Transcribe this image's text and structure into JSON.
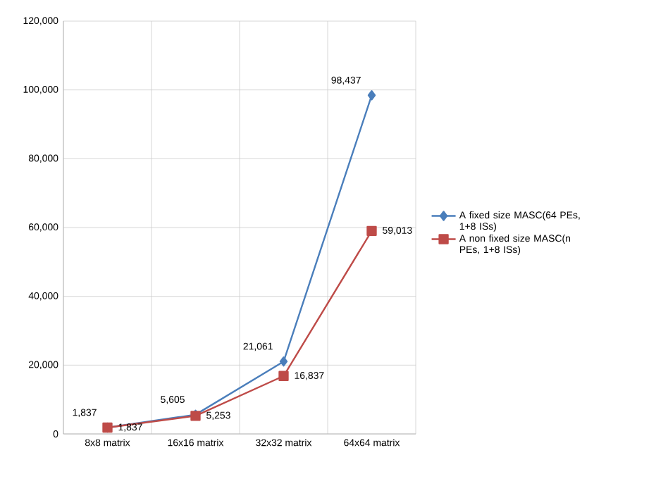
{
  "chart_data": {
    "type": "line",
    "categories": [
      "8x8  matrix",
      "16x16 matrix",
      "32x32 matrix",
      "64x64 matrix"
    ],
    "series": [
      {
        "name": "A fixed size MASC(64 PEs, 1+8 ISs)",
        "color": "#4a7ebb",
        "marker": "diamond",
        "values": [
          1837,
          5605,
          21061,
          98437
        ],
        "value_labels": [
          "1,837",
          "5,605",
          "21,061",
          "98,437"
        ]
      },
      {
        "name": "A non fixed size MASC(n PEs, 1+8 ISs)",
        "color": "#be4b48",
        "marker": "square",
        "values": [
          1837,
          5253,
          16837,
          59013
        ],
        "value_labels": [
          "1,837",
          "5,253",
          "16,837",
          "59,013"
        ]
      }
    ],
    "ylim": [
      0,
      120000
    ],
    "yticks": [
      {
        "value": 0,
        "label": "0"
      },
      {
        "value": 20000,
        "label": "20,000"
      },
      {
        "value": 40000,
        "label": "40,000"
      },
      {
        "value": 60000,
        "label": "60,000"
      },
      {
        "value": 80000,
        "label": "80,000"
      },
      {
        "value": 100000,
        "label": "100,000"
      },
      {
        "value": 120000,
        "label": "120,000"
      }
    ],
    "grid": true,
    "legend": "right"
  }
}
